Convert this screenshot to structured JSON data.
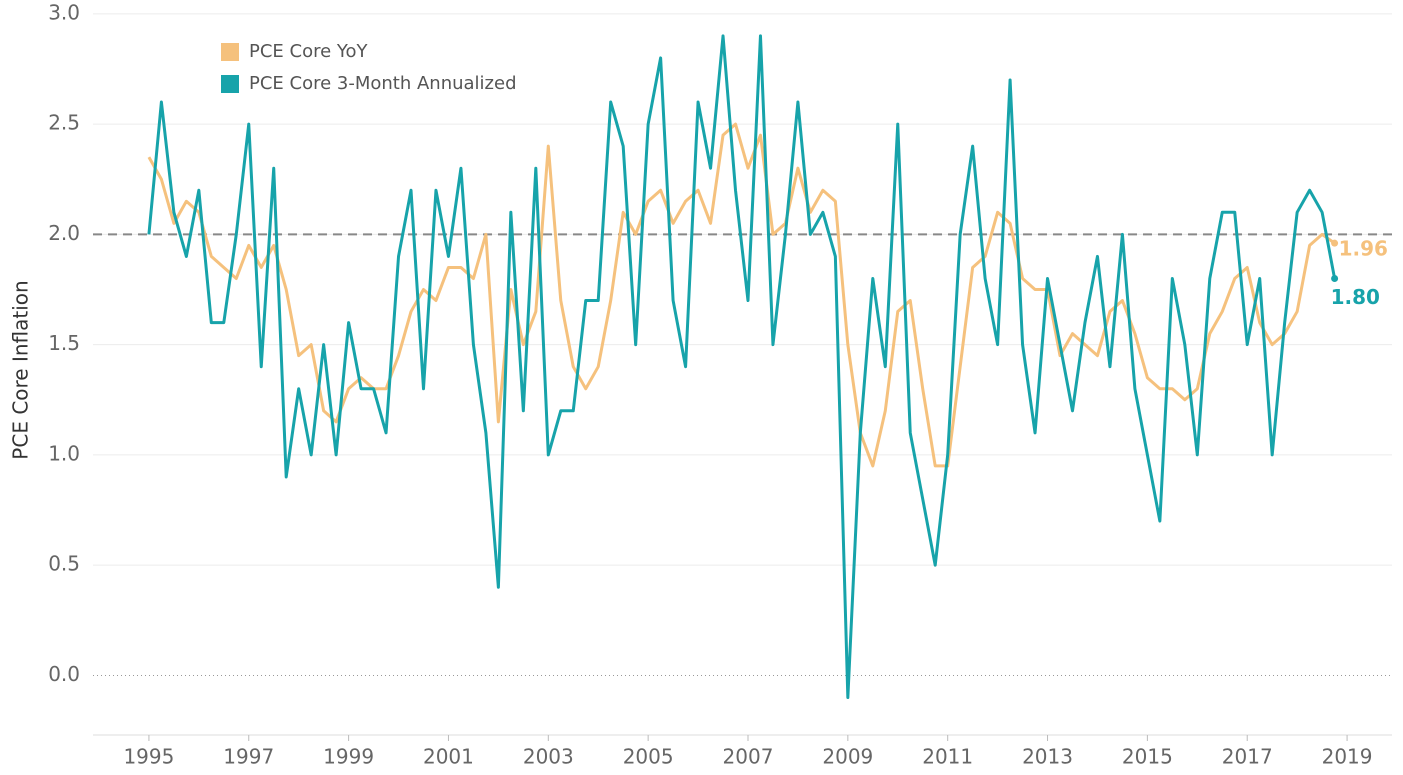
{
  "chart_data": {
    "type": "line",
    "y_label": "PCE Core Inflation",
    "x": [
      1995,
      1995.25,
      1995.5,
      1995.75,
      1996,
      1996.25,
      1996.5,
      1996.75,
      1997,
      1997.25,
      1997.5,
      1997.75,
      1998,
      1998.25,
      1998.5,
      1998.75,
      1999,
      1999.25,
      1999.5,
      1999.75,
      2000,
      2000.25,
      2000.5,
      2000.75,
      2001,
      2001.25,
      2001.5,
      2001.75,
      2002,
      2002.25,
      2002.5,
      2002.75,
      2003,
      2003.25,
      2003.5,
      2003.75,
      2004,
      2004.25,
      2004.5,
      2004.75,
      2005,
      2005.25,
      2005.5,
      2005.75,
      2006,
      2006.25,
      2006.5,
      2006.75,
      2007,
      2007.25,
      2007.5,
      2007.75,
      2008,
      2008.25,
      2008.5,
      2008.75,
      2009,
      2009.25,
      2009.5,
      2009.75,
      2010,
      2010.25,
      2010.5,
      2010.75,
      2011,
      2011.25,
      2011.5,
      2011.75,
      2012,
      2012.25,
      2012.5,
      2012.75,
      2013,
      2013.25,
      2013.5,
      2013.75,
      2014,
      2014.25,
      2014.5,
      2014.75,
      2015,
      2015.25,
      2015.5,
      2015.75,
      2016,
      2016.25,
      2016.5,
      2016.75,
      2017,
      2017.25,
      2017.5,
      2017.75,
      2018,
      2018.25,
      2018.5,
      2018.75
    ],
    "series": [
      {
        "name": "PCE Core YoY",
        "color": "#f5c17d",
        "end_label": "1.96",
        "values": [
          2.35,
          2.25,
          2.05,
          2.15,
          2.1,
          1.9,
          1.85,
          1.8,
          1.95,
          1.85,
          1.95,
          1.75,
          1.45,
          1.5,
          1.2,
          1.15,
          1.3,
          1.35,
          1.3,
          1.3,
          1.45,
          1.65,
          1.75,
          1.7,
          1.85,
          1.85,
          1.8,
          2.0,
          1.15,
          1.75,
          1.5,
          1.65,
          2.4,
          1.7,
          1.4,
          1.3,
          1.4,
          1.7,
          2.1,
          2.0,
          2.15,
          2.2,
          2.05,
          2.15,
          2.2,
          2.05,
          2.45,
          2.5,
          2.3,
          2.45,
          2.0,
          2.05,
          2.3,
          2.1,
          2.2,
          2.15,
          1.5,
          1.1,
          0.95,
          1.2,
          1.65,
          1.7,
          1.3,
          0.95,
          0.95,
          1.4,
          1.85,
          1.9,
          2.1,
          2.05,
          1.8,
          1.75,
          1.75,
          1.45,
          1.55,
          1.5,
          1.45,
          1.65,
          1.7,
          1.55,
          1.35,
          1.3,
          1.3,
          1.25,
          1.3,
          1.55,
          1.65,
          1.8,
          1.85,
          1.6,
          1.5,
          1.55,
          1.65,
          1.95,
          2.0,
          1.96
        ]
      },
      {
        "name": "PCE Core 3-Month Annualized",
        "color": "#17a3aa",
        "end_label": "1.80",
        "values": [
          2.0,
          2.6,
          2.1,
          1.9,
          2.2,
          1.6,
          1.6,
          2.0,
          2.5,
          1.4,
          2.3,
          0.9,
          1.3,
          1.0,
          1.5,
          1.0,
          1.6,
          1.3,
          1.3,
          1.1,
          1.9,
          2.2,
          1.3,
          2.2,
          1.9,
          2.3,
          1.5,
          1.1,
          0.4,
          2.1,
          1.2,
          2.3,
          1.0,
          1.2,
          1.2,
          1.7,
          1.7,
          2.6,
          2.4,
          1.5,
          2.5,
          2.8,
          1.7,
          1.4,
          2.6,
          2.3,
          2.9,
          2.2,
          1.7,
          2.9,
          1.5,
          2.0,
          2.6,
          2.0,
          2.1,
          1.9,
          -0.1,
          1.1,
          1.8,
          1.4,
          2.5,
          1.1,
          0.8,
          0.5,
          1.0,
          2.0,
          2.4,
          1.8,
          1.5,
          2.7,
          1.5,
          1.1,
          1.8,
          1.5,
          1.2,
          1.6,
          1.9,
          1.4,
          2.0,
          1.3,
          1.0,
          0.7,
          1.8,
          1.5,
          1.0,
          1.8,
          2.1,
          2.1,
          1.5,
          1.8,
          1.0,
          1.6,
          2.1,
          2.2,
          2.1,
          1.8
        ]
      }
    ],
    "xlim": [
      1993.88,
      2019.9
    ],
    "xticks": [
      1995,
      1997,
      1999,
      2001,
      2003,
      2005,
      2007,
      2009,
      2011,
      2013,
      2015,
      2017,
      2019
    ],
    "ylim": [
      -0.27,
      3.04
    ],
    "yticks": [
      {
        "value": 0,
        "label": "0.0"
      },
      0.5,
      {
        "value": 1,
        "label": "1.0"
      },
      1.5,
      {
        "value": 2,
        "label": "2.0"
      },
      2.5,
      {
        "value": 3,
        "label": "3.0"
      }
    ],
    "reference_line": 2,
    "grid": true,
    "legend": "top-left"
  }
}
